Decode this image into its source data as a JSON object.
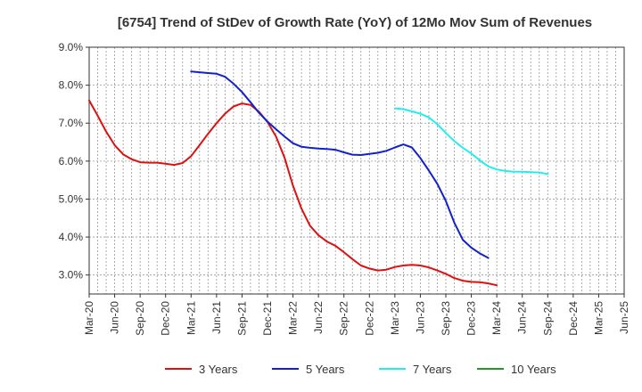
{
  "chart_data": {
    "type": "line",
    "title": "[6754]  Trend of StDev of Growth Rate (YoY) of 12Mo Mov Sum of Revenues",
    "xlabel": "",
    "ylabel": "",
    "ylim": [
      2.5,
      9.0
    ],
    "y_ticks": [
      3.0,
      4.0,
      5.0,
      6.0,
      7.0,
      8.0,
      9.0
    ],
    "y_tick_labels": [
      "3.0%",
      "4.0%",
      "5.0%",
      "6.0%",
      "7.0%",
      "8.0%",
      "9.0%"
    ],
    "x_tick_labels": [
      "Mar-20",
      "Jun-20",
      "Sep-20",
      "Dec-20",
      "Mar-21",
      "Jun-21",
      "Sep-21",
      "Dec-21",
      "Mar-22",
      "Jun-22",
      "Sep-22",
      "Dec-22",
      "Mar-23",
      "Jun-23",
      "Sep-23",
      "Dec-23",
      "Mar-24",
      "Jun-24",
      "Sep-24",
      "Dec-24",
      "Mar-25",
      "Jun-25"
    ],
    "grid": true,
    "legend_position": "bottom",
    "series": [
      {
        "name": "3 Years",
        "color": "#dd1111",
        "points": [
          [
            0,
            7.6
          ],
          [
            1,
            7.2
          ],
          [
            2,
            6.78
          ],
          [
            3,
            6.42
          ],
          [
            4,
            6.18
          ],
          [
            5,
            6.05
          ],
          [
            6,
            5.97
          ],
          [
            7,
            5.96
          ],
          [
            8,
            5.96
          ],
          [
            9,
            5.93
          ],
          [
            10,
            5.9
          ],
          [
            11,
            5.95
          ],
          [
            12,
            6.13
          ],
          [
            13,
            6.42
          ],
          [
            14,
            6.72
          ],
          [
            15,
            7.0
          ],
          [
            16,
            7.25
          ],
          [
            17,
            7.44
          ],
          [
            18,
            7.52
          ],
          [
            19,
            7.48
          ],
          [
            20,
            7.3
          ],
          [
            21,
            7.03
          ],
          [
            22,
            6.65
          ],
          [
            23,
            6.1
          ],
          [
            24,
            5.35
          ],
          [
            25,
            4.75
          ],
          [
            26,
            4.3
          ],
          [
            27,
            4.05
          ],
          [
            28,
            3.88
          ],
          [
            29,
            3.77
          ],
          [
            30,
            3.6
          ],
          [
            31,
            3.42
          ],
          [
            32,
            3.25
          ],
          [
            33,
            3.17
          ],
          [
            34,
            3.12
          ],
          [
            35,
            3.14
          ],
          [
            36,
            3.21
          ],
          [
            37,
            3.25
          ],
          [
            38,
            3.27
          ],
          [
            39,
            3.25
          ],
          [
            40,
            3.2
          ],
          [
            41,
            3.12
          ],
          [
            42,
            3.03
          ],
          [
            43,
            2.92
          ],
          [
            44,
            2.85
          ],
          [
            45,
            2.82
          ],
          [
            46,
            2.81
          ],
          [
            47,
            2.78
          ],
          [
            48,
            2.73
          ]
        ]
      },
      {
        "name": "5 Years",
        "color": "#1122cc",
        "points": [
          [
            12,
            8.36
          ],
          [
            13,
            8.34
          ],
          [
            14,
            8.32
          ],
          [
            15,
            8.3
          ],
          [
            16,
            8.22
          ],
          [
            17,
            8.04
          ],
          [
            18,
            7.82
          ],
          [
            19,
            7.55
          ],
          [
            20,
            7.27
          ],
          [
            21,
            7.04
          ],
          [
            22,
            6.84
          ],
          [
            23,
            6.65
          ],
          [
            24,
            6.47
          ],
          [
            25,
            6.38
          ],
          [
            26,
            6.35
          ],
          [
            27,
            6.33
          ],
          [
            28,
            6.32
          ],
          [
            29,
            6.3
          ],
          [
            30,
            6.23
          ],
          [
            31,
            6.17
          ],
          [
            32,
            6.16
          ],
          [
            33,
            6.19
          ],
          [
            34,
            6.22
          ],
          [
            35,
            6.27
          ],
          [
            36,
            6.36
          ],
          [
            37,
            6.44
          ],
          [
            38,
            6.36
          ],
          [
            39,
            6.08
          ],
          [
            40,
            5.75
          ],
          [
            41,
            5.4
          ],
          [
            42,
            4.95
          ],
          [
            43,
            4.38
          ],
          [
            44,
            3.93
          ],
          [
            45,
            3.72
          ],
          [
            46,
            3.57
          ],
          [
            47,
            3.45
          ]
        ]
      },
      {
        "name": "7 Years",
        "color": "#22eeee",
        "points": [
          [
            36,
            7.39
          ],
          [
            37,
            7.37
          ],
          [
            38,
            7.31
          ],
          [
            39,
            7.25
          ],
          [
            40,
            7.15
          ],
          [
            41,
            6.97
          ],
          [
            42,
            6.74
          ],
          [
            43,
            6.53
          ],
          [
            44,
            6.35
          ],
          [
            45,
            6.2
          ],
          [
            46,
            6.02
          ],
          [
            47,
            5.86
          ],
          [
            48,
            5.78
          ],
          [
            49,
            5.74
          ],
          [
            50,
            5.72
          ],
          [
            51,
            5.72
          ],
          [
            52,
            5.71
          ],
          [
            53,
            5.7
          ],
          [
            54,
            5.66
          ]
        ]
      },
      {
        "name": "10 Years",
        "color": "#229922",
        "points": []
      }
    ]
  }
}
